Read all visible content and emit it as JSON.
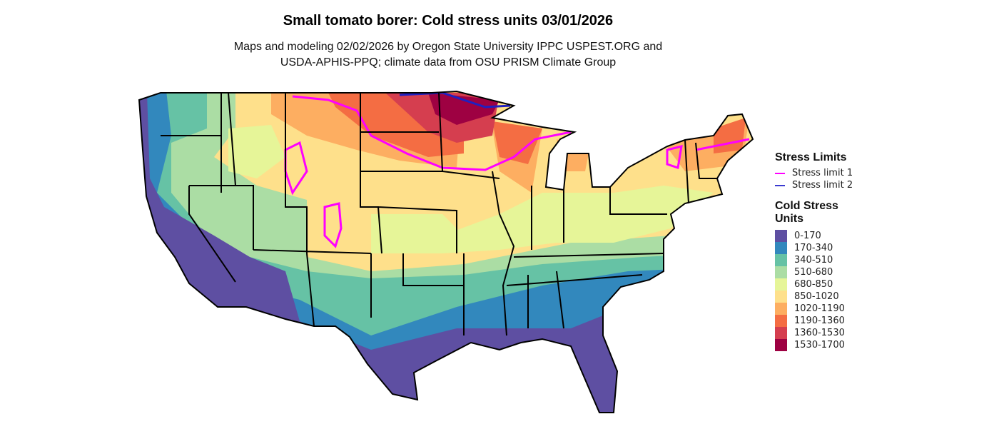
{
  "title": "Small tomato borer: Cold stress units 03/01/2026",
  "subtitle_line1": "Maps and modeling 02/02/2026 by Oregon State University IPPC USPEST.ORG and",
  "subtitle_line2": "USDA-APHIS-PPQ; climate data from OSU PRISM Climate Group",
  "legend": {
    "stress_title": "Stress Limits",
    "stress_items": [
      {
        "label": "Stress limit 1",
        "color": "#FF00FF"
      },
      {
        "label": "Stress limit 2",
        "color": "#3A3AD0"
      }
    ],
    "csu_title_1": "Cold Stress",
    "csu_title_2": "Units",
    "bins": [
      {
        "label": "0-170",
        "color": "#5E4FA2"
      },
      {
        "label": "170-340",
        "color": "#3288BD"
      },
      {
        "label": "340-510",
        "color": "#66C2A5"
      },
      {
        "label": "510-680",
        "color": "#ABDDA4"
      },
      {
        "label": "680-850",
        "color": "#E6F598"
      },
      {
        "label": "850-1020",
        "color": "#FEE08B"
      },
      {
        "label": "1020-1190",
        "color": "#FDAE61"
      },
      {
        "label": "1190-1360",
        "color": "#F46D43"
      },
      {
        "label": "1360-1530",
        "color": "#D53E4F"
      },
      {
        "label": "1530-1700",
        "color": "#9E0142"
      }
    ]
  }
}
